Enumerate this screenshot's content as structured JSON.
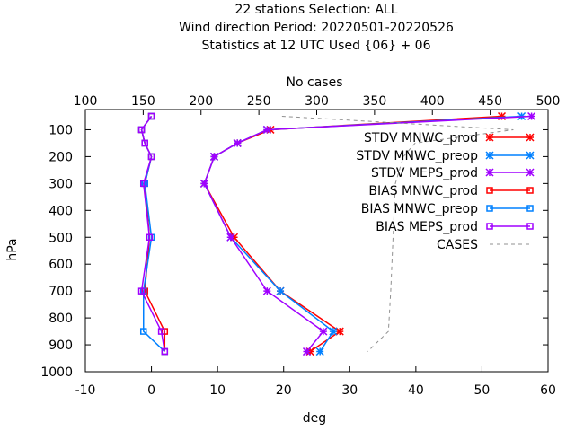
{
  "header": {
    "line1": "22 stations Selection: ALL",
    "line2": "Wind direction  Period: 20220501-20220526",
    "line3": "Statistics at 12 UTC  Used {06} + 06"
  },
  "chart_data": {
    "type": "line",
    "title": "22 stations Selection: ALL / Wind direction  Period: 20220501-20220526 / Statistics at 12 UTC  Used {06} + 06",
    "xlabel": "deg",
    "ylabel": "hPa",
    "x2label": "No cases",
    "xlim": [
      -10,
      60
    ],
    "x2lim": [
      100,
      500
    ],
    "ylim": [
      1000,
      25
    ],
    "yreverse": true,
    "xticks": [
      -10,
      0,
      10,
      20,
      30,
      40,
      50,
      60
    ],
    "x2ticks": [
      100,
      150,
      200,
      250,
      300,
      350,
      400,
      450,
      500
    ],
    "yticks": [
      100,
      200,
      300,
      400,
      500,
      600,
      700,
      800,
      900,
      1000
    ],
    "grid": false,
    "legend_position": "top-right",
    "levels": [
      50,
      100,
      150,
      200,
      300,
      500,
      700,
      850,
      925
    ],
    "series": [
      {
        "name": "STDV MNWC_prod",
        "color": "#ff0000",
        "marker": "star",
        "dash": false,
        "points": [
          [
            53,
            50
          ],
          [
            18,
            100
          ],
          [
            13,
            150
          ],
          [
            9.5,
            200
          ],
          [
            8,
            300
          ],
          [
            12.5,
            500
          ],
          [
            19.5,
            700
          ],
          [
            28.5,
            850
          ],
          [
            24,
            925
          ]
        ]
      },
      {
        "name": "STDV MNWC_preop",
        "color": "#0080ff",
        "marker": "star",
        "dash": false,
        "points": [
          [
            56,
            50
          ],
          [
            17.5,
            100
          ],
          [
            13,
            150
          ],
          [
            9.5,
            200
          ],
          [
            8,
            300
          ],
          [
            12,
            500
          ],
          [
            19.5,
            700
          ],
          [
            27.5,
            850
          ],
          [
            25.5,
            925
          ]
        ]
      },
      {
        "name": "STDV MEPS_prod",
        "color": "#a000ff",
        "marker": "star",
        "dash": false,
        "points": [
          [
            57.5,
            50
          ],
          [
            17.5,
            100
          ],
          [
            13,
            150
          ],
          [
            9.5,
            200
          ],
          [
            8,
            300
          ],
          [
            12,
            500
          ],
          [
            17.5,
            700
          ],
          [
            26,
            850
          ],
          [
            23.5,
            925
          ]
        ]
      },
      {
        "name": "BIAS MNWC_prod",
        "color": "#ff0000",
        "marker": "square",
        "dash": false,
        "points": [
          [
            0,
            50
          ],
          [
            -1.5,
            100
          ],
          [
            -1,
            150
          ],
          [
            0,
            200
          ],
          [
            -1,
            300
          ],
          [
            -0.3,
            500
          ],
          [
            -1,
            700
          ],
          [
            2,
            850
          ],
          [
            2,
            925
          ]
        ]
      },
      {
        "name": "BIAS MNWC_preop",
        "color": "#0080ff",
        "marker": "square",
        "dash": false,
        "points": [
          [
            0,
            50
          ],
          [
            -1.5,
            100
          ],
          [
            -1,
            150
          ],
          [
            0,
            200
          ],
          [
            -1,
            300
          ],
          [
            0,
            500
          ],
          [
            -1.2,
            700
          ],
          [
            -1.2,
            850
          ],
          [
            2,
            925
          ]
        ]
      },
      {
        "name": "BIAS MEPS_prod",
        "color": "#a000ff",
        "marker": "square",
        "dash": false,
        "points": [
          [
            0,
            50
          ],
          [
            -1.5,
            100
          ],
          [
            -1,
            150
          ],
          [
            0,
            200
          ],
          [
            -1.2,
            300
          ],
          [
            -0.3,
            500
          ],
          [
            -1.5,
            700
          ],
          [
            1.5,
            850
          ],
          [
            2,
            925
          ]
        ]
      },
      {
        "name": "CASES",
        "color": "#909090",
        "marker": "none",
        "dash": true,
        "axis": "top",
        "points": [
          [
            270,
            50
          ],
          [
            470,
            100
          ],
          [
            385,
            150
          ],
          [
            375,
            200
          ],
          [
            368,
            300
          ],
          [
            366,
            500
          ],
          [
            364,
            700
          ],
          [
            362,
            850
          ],
          [
            344,
            925
          ]
        ]
      }
    ]
  }
}
